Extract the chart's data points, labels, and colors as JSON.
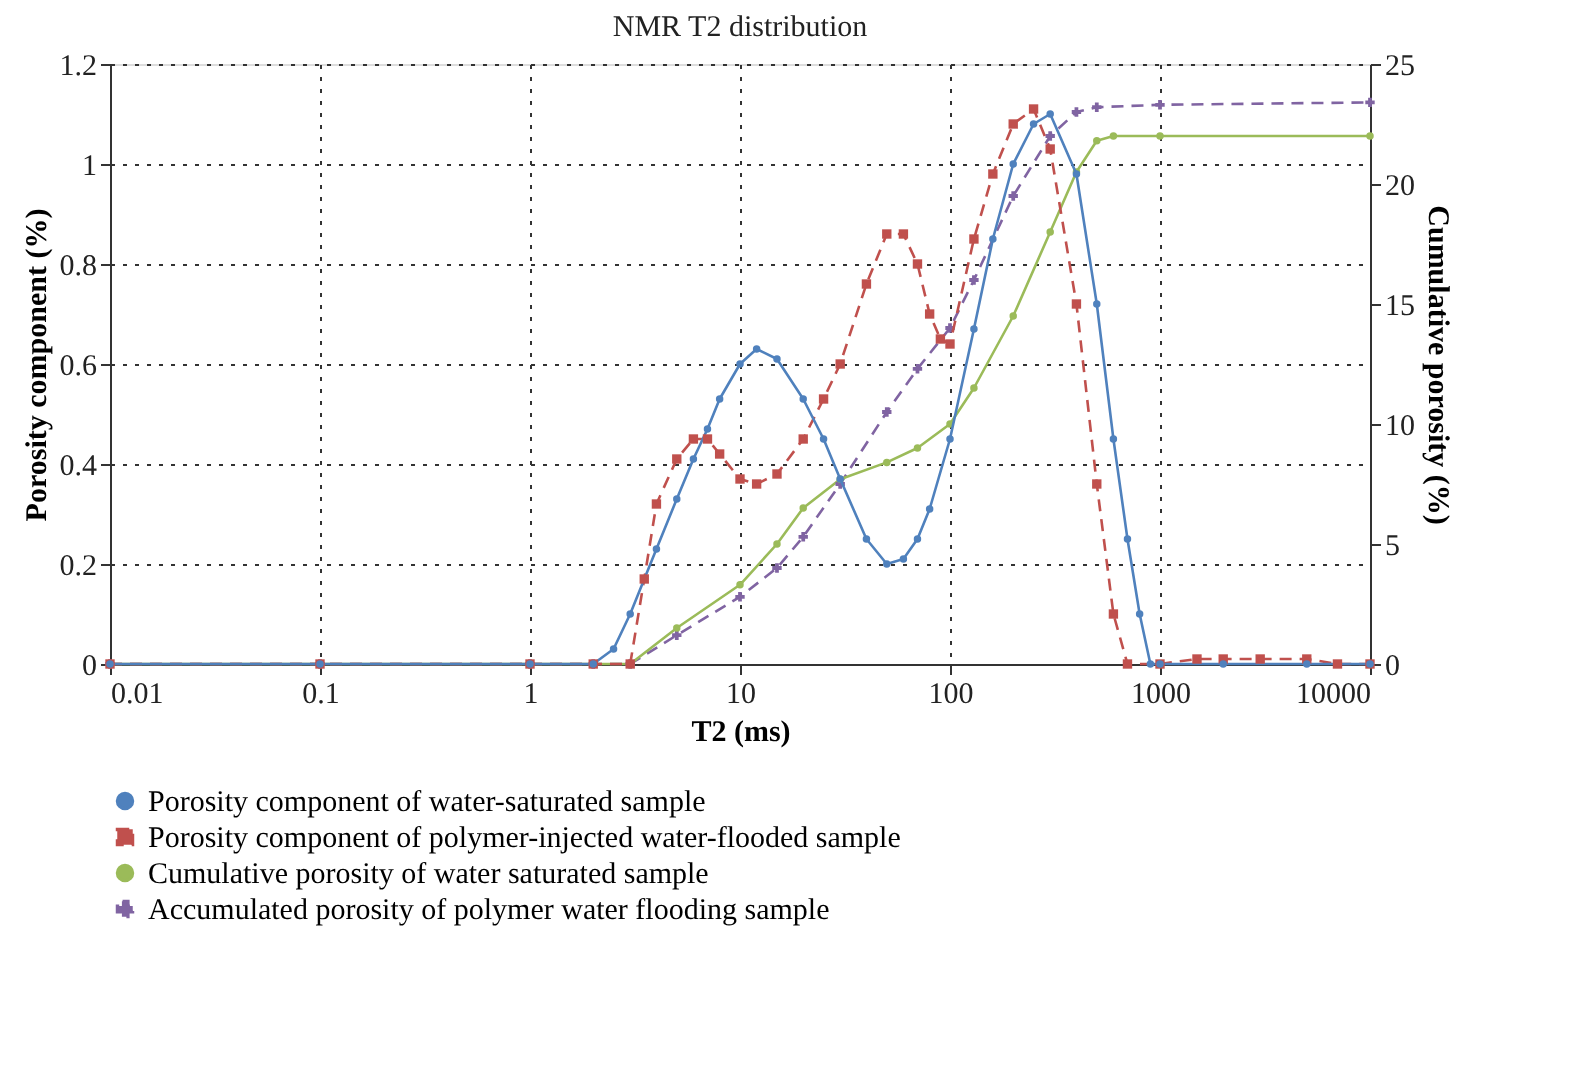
{
  "chart_data": {
    "type": "line",
    "title": "NMR T2 distribution",
    "xlabel": "T2 (ms)",
    "ylabel": "Porosity component (%)",
    "y2label": "Cumulative porosity (%)",
    "log": "x",
    "xlim": [
      0.01,
      10000
    ],
    "xticks": [
      0.01,
      0.1,
      1,
      10,
      100,
      1000,
      10000
    ],
    "ylim": [
      0,
      1.2
    ],
    "yticks": [
      0,
      0.2,
      0.4,
      0.6,
      0.8,
      1,
      1.2
    ],
    "y2lim": [
      0,
      25
    ],
    "y2ticks": [
      0,
      5,
      10,
      15,
      20,
      25
    ],
    "grid": true,
    "legend": "bottom",
    "series": [
      {
        "name": "Porosity component of water-saturated sample",
        "color": "#4f81bd",
        "marker": "circle",
        "line_style": "solid",
        "x": [
          0.01,
          0.1,
          1,
          2,
          2.5,
          3,
          4,
          5,
          6,
          7,
          8,
          10,
          12,
          15,
          20,
          25,
          30,
          40,
          50,
          60,
          70,
          80,
          100,
          130,
          160,
          200,
          250,
          300,
          400,
          500,
          600,
          700,
          800,
          900,
          1000,
          2000,
          5000,
          10000
        ],
        "values": [
          0,
          0,
          0,
          0,
          0.03,
          0.1,
          0.23,
          0.33,
          0.41,
          0.47,
          0.53,
          0.6,
          0.63,
          0.61,
          0.53,
          0.45,
          0.37,
          0.25,
          0.2,
          0.21,
          0.25,
          0.31,
          0.45,
          0.67,
          0.85,
          1.0,
          1.08,
          1.1,
          0.98,
          0.72,
          0.45,
          0.25,
          0.1,
          0,
          0,
          0,
          0,
          0
        ]
      },
      {
        "name": "Porosity component of polymer-injected water-flooded sample",
        "color": "#c0504d",
        "marker": "square",
        "line_style": "dashed",
        "x": [
          0.01,
          0.1,
          1,
          2,
          3,
          3.5,
          4,
          5,
          6,
          7,
          8,
          10,
          12,
          15,
          20,
          25,
          30,
          40,
          50,
          60,
          70,
          80,
          90,
          100,
          130,
          160,
          200,
          250,
          300,
          400,
          500,
          600,
          700,
          1000,
          1500,
          2000,
          3000,
          5000,
          7000,
          10000
        ],
        "values": [
          0,
          0,
          0,
          0,
          0,
          0.17,
          0.32,
          0.41,
          0.45,
          0.45,
          0.42,
          0.37,
          0.36,
          0.38,
          0.45,
          0.53,
          0.6,
          0.76,
          0.86,
          0.86,
          0.8,
          0.7,
          0.65,
          0.64,
          0.85,
          0.98,
          1.08,
          1.11,
          1.03,
          0.72,
          0.36,
          0.1,
          0,
          0,
          0.01,
          0.01,
          0.01,
          0.01,
          0,
          0
        ]
      },
      {
        "name": "Cumulative porosity of water saturated sample",
        "color": "#9bbb59",
        "marker": "circle",
        "line_style": "solid",
        "axis": "y2",
        "x": [
          0.01,
          0.1,
          1,
          2,
          3,
          5,
          10,
          15,
          20,
          30,
          50,
          70,
          100,
          130,
          200,
          300,
          400,
          500,
          600,
          1000,
          10000
        ],
        "values": [
          0,
          0,
          0,
          0,
          0,
          1.5,
          3.3,
          5,
          6.5,
          7.7,
          8.4,
          9,
          10,
          11.5,
          14.5,
          18,
          20.5,
          21.8,
          22,
          22,
          22
        ]
      },
      {
        "name": "Accumulated porosity of polymer water flooding sample",
        "color": "#8064a2",
        "marker": "cross",
        "line_style": "dashed",
        "axis": "y2",
        "x": [
          0.01,
          0.1,
          1,
          2,
          3,
          5,
          10,
          15,
          20,
          30,
          50,
          70,
          100,
          130,
          200,
          300,
          400,
          500,
          1000,
          10000
        ],
        "values": [
          0,
          0,
          0,
          0,
          0,
          1.2,
          2.8,
          4,
          5.3,
          7.5,
          10.5,
          12.3,
          14,
          16,
          19.5,
          22,
          23,
          23.2,
          23.3,
          23.4
        ]
      }
    ]
  }
}
